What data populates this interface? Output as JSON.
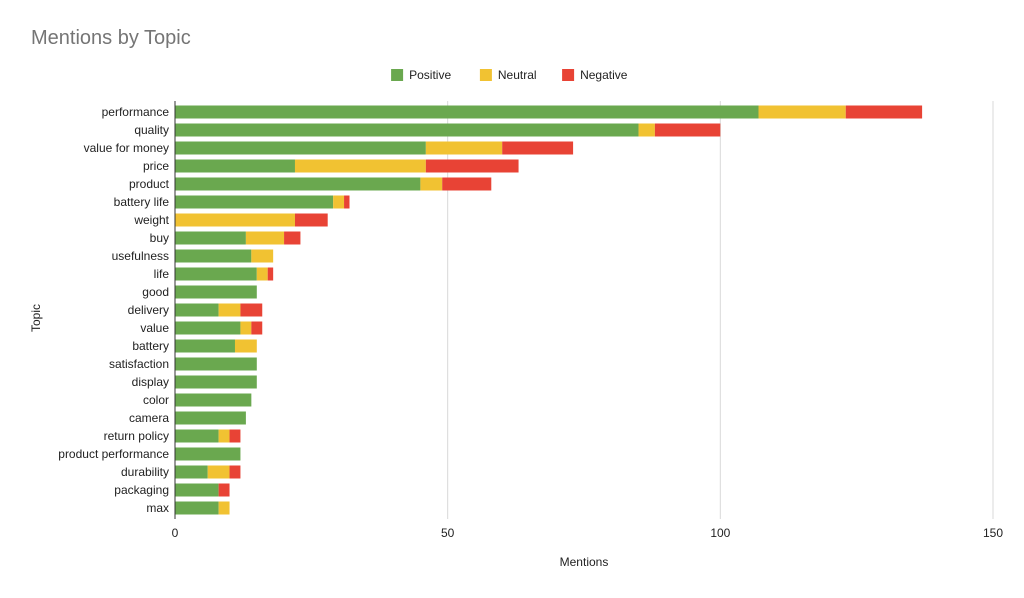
{
  "chart_data": {
    "type": "bar",
    "orientation": "horizontal",
    "stacked": true,
    "title": "Mentions by Topic",
    "xlabel": "Mentions",
    "ylabel": "Topic",
    "xlim": [
      0,
      150
    ],
    "xticks": [
      0,
      50,
      100,
      150
    ],
    "grid": true,
    "legend_position": "top",
    "categories": [
      "performance",
      "quality",
      "value for money",
      "price",
      "product",
      "battery life",
      "weight",
      "buy",
      "usefulness",
      "life",
      "good",
      "delivery",
      "value",
      "battery",
      "satisfaction",
      "display",
      "color",
      "camera",
      "return policy",
      "product performance",
      "durability",
      "packaging",
      "max"
    ],
    "series": [
      {
        "name": "Positive",
        "color": "#6aa84f",
        "values": [
          107,
          85,
          46,
          22,
          45,
          29,
          0,
          13,
          14,
          15,
          15,
          8,
          12,
          11,
          15,
          15,
          14,
          13,
          8,
          12,
          6,
          8,
          8
        ]
      },
      {
        "name": "Neutral",
        "color": "#f1c232",
        "values": [
          16,
          3,
          14,
          24,
          4,
          2,
          22,
          7,
          4,
          2,
          0,
          4,
          2,
          4,
          0,
          0,
          0,
          0,
          2,
          0,
          4,
          0,
          2
        ]
      },
      {
        "name": "Negative",
        "color": "#e84335",
        "values": [
          14,
          12,
          13,
          17,
          9,
          1,
          6,
          3,
          0,
          1,
          0,
          4,
          2,
          0,
          0,
          0,
          0,
          0,
          2,
          0,
          2,
          2,
          0
        ]
      }
    ]
  }
}
